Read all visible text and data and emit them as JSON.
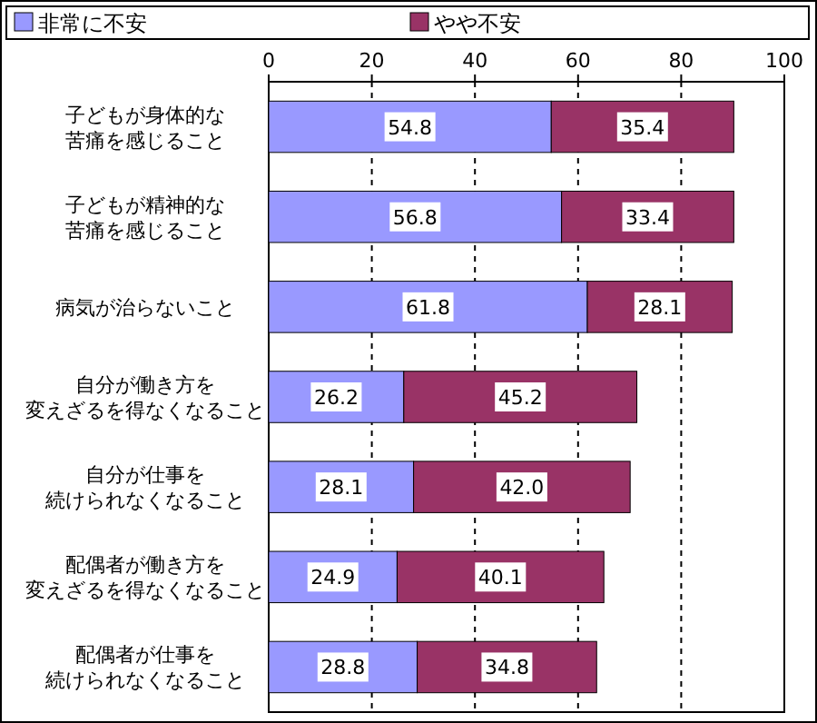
{
  "chart_data": {
    "type": "bar",
    "orientation": "horizontal",
    "stacked": true,
    "categories": [
      "子どもが身体的な苦痛を感じること",
      "子どもが精神的な苦痛を感じること",
      "病気が治らないこと",
      "自分が働き方を変えざるを得なくなること",
      "自分が仕事を続けられなくなること",
      "配偶者が働き方を変えざるを得なくなること",
      "配偶者が仕事を続けられなくなること"
    ],
    "series": [
      {
        "name": "非常に不安",
        "color": "#9999ff",
        "values": [
          54.8,
          56.8,
          61.8,
          26.2,
          28.1,
          24.9,
          28.8
        ],
        "value_labels": [
          "54.8",
          "56.8",
          "61.8",
          "26.2",
          "28.1",
          "24.9",
          "28.8"
        ]
      },
      {
        "name": "やや不安",
        "color": "#993366",
        "values": [
          35.4,
          33.4,
          28.1,
          45.2,
          42.0,
          40.1,
          34.8
        ],
        "value_labels": [
          "35.4",
          "33.4",
          "28.1",
          "45.2",
          "42.0",
          "40.1",
          "34.8"
        ]
      }
    ],
    "xlim": [
      0,
      100
    ],
    "xticks": [
      0,
      20,
      40,
      60,
      80,
      100
    ],
    "grid": "x",
    "legend": "top"
  }
}
